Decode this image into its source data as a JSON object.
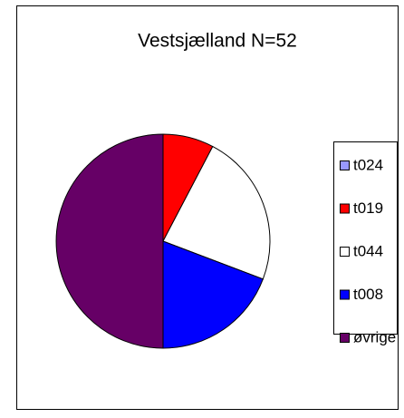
{
  "chart_data": {
    "type": "pie",
    "title": "Vestsjælland N=52",
    "categories": [
      "t024",
      "t019",
      "t044",
      "t008",
      "øvrige"
    ],
    "values": [
      0,
      4,
      12,
      10,
      26
    ],
    "colors": [
      "#9999ff",
      "#ff0000",
      "#ffffff",
      "#0000ff",
      "#660066"
    ],
    "legend": "right"
  }
}
